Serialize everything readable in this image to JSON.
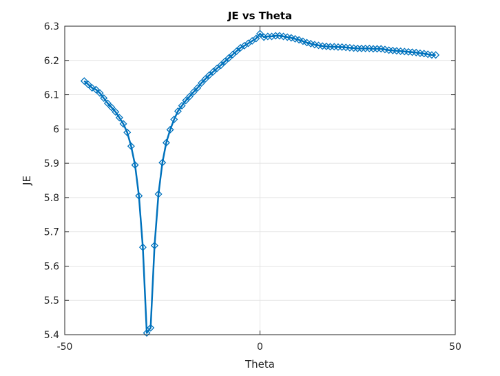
{
  "chart_data": {
    "type": "line",
    "title": "JE vs Theta",
    "xlabel": "Theta",
    "ylabel": "JE",
    "xlim": [
      -50,
      50
    ],
    "ylim": [
      5.4,
      6.3
    ],
    "xticks": [
      -50,
      0,
      50
    ],
    "xtick_labels": [
      "-50",
      "0",
      "50"
    ],
    "yticks": [
      5.4,
      5.5,
      5.6,
      5.7,
      5.8,
      5.9,
      6.0,
      6.1,
      6.2,
      6.3
    ],
    "ytick_labels": [
      "5.4",
      "5.5",
      "5.6",
      "5.7",
      "5.8",
      "5.9",
      "6",
      "6.1",
      "6.2",
      "6.3"
    ],
    "grid": true,
    "legend": "none",
    "marker": "diamond",
    "series": [
      {
        "color": "#0072BD",
        "x": [
          -45,
          -44,
          -43,
          -42,
          -41,
          -40,
          -39,
          -38,
          -37,
          -36,
          -35,
          -34,
          -33,
          -32,
          -31,
          -30,
          -29,
          -28,
          -27,
          -26,
          -25,
          -24,
          -23,
          -22,
          -21,
          -20,
          -19,
          -18,
          -17,
          -16,
          -15,
          -14,
          -13,
          -12,
          -11,
          -10,
          -9,
          -8,
          -7,
          -6,
          -5,
          -4,
          -3,
          -2,
          -1,
          0,
          1,
          2,
          3,
          4,
          5,
          6,
          7,
          8,
          9,
          10,
          11,
          12,
          13,
          14,
          15,
          16,
          17,
          18,
          19,
          20,
          21,
          22,
          23,
          24,
          25,
          26,
          27,
          28,
          29,
          30,
          31,
          32,
          33,
          34,
          35,
          36,
          37,
          38,
          39,
          40,
          41,
          42,
          43,
          44,
          45
        ],
        "y": [
          6.14,
          6.13,
          6.12,
          6.115,
          6.105,
          6.09,
          6.075,
          6.063,
          6.05,
          6.033,
          6.015,
          5.99,
          5.95,
          5.895,
          5.805,
          5.655,
          5.405,
          5.42,
          5.66,
          5.81,
          5.902,
          5.96,
          5.998,
          6.028,
          6.052,
          6.068,
          6.083,
          6.095,
          6.108,
          6.12,
          6.134,
          6.146,
          6.157,
          6.167,
          6.177,
          6.186,
          6.197,
          6.207,
          6.217,
          6.227,
          6.237,
          6.243,
          6.25,
          6.257,
          6.264,
          6.278,
          6.268,
          6.27,
          6.27,
          6.272,
          6.272,
          6.27,
          6.268,
          6.266,
          6.263,
          6.26,
          6.256,
          6.252,
          6.249,
          6.246,
          6.244,
          6.242,
          6.241,
          6.24,
          6.24,
          6.239,
          6.239,
          6.238,
          6.237,
          6.236,
          6.235,
          6.235,
          6.235,
          6.235,
          6.234,
          6.234,
          6.234,
          6.232,
          6.23,
          6.229,
          6.228,
          6.227,
          6.226,
          6.225,
          6.224,
          6.223,
          6.221,
          6.22,
          6.218,
          6.216,
          6.216
        ]
      }
    ]
  }
}
